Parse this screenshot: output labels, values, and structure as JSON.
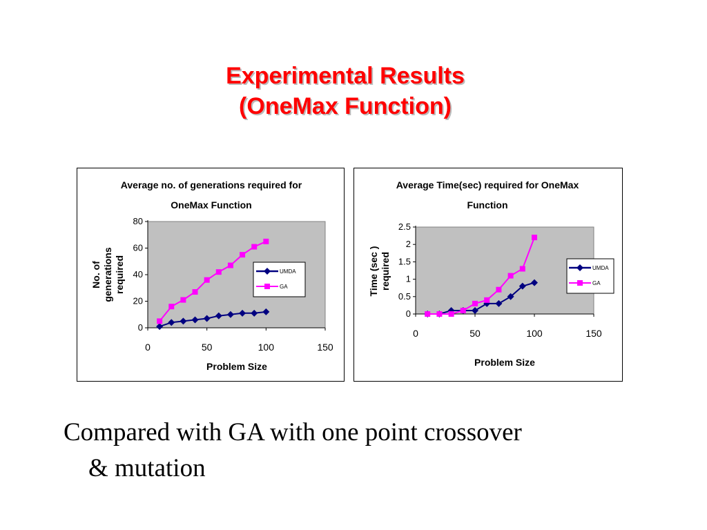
{
  "slide": {
    "title_line1": "Experimental Results",
    "title_line2": "(OneMax Function)",
    "caption_line1": "Compared with GA with one point crossover",
    "caption_line2": "& mutation",
    "title_color": "#ff0000"
  },
  "chart_data": [
    {
      "type": "line",
      "title_lines": [
        "Average no. of generations required for",
        "OneMax Function"
      ],
      "xlabel": "Problem Size",
      "ylabel_lines": [
        "No. of",
        "generations",
        "required"
      ],
      "xlim": [
        0,
        150
      ],
      "ylim": [
        0,
        80
      ],
      "xticks": [
        0,
        50,
        100,
        150
      ],
      "yticks": [
        0,
        20,
        40,
        60,
        80
      ],
      "grid": false,
      "plot_background": "#c0c0c0",
      "legend_position": "right",
      "series": [
        {
          "name": "UMDA",
          "color": "#000080",
          "marker": "diamond",
          "x": [
            10,
            20,
            30,
            40,
            50,
            60,
            70,
            80,
            90,
            100
          ],
          "values": [
            1,
            4,
            5,
            6,
            7,
            9,
            10,
            11,
            11,
            12
          ]
        },
        {
          "name": "GA",
          "color": "#ff00ff",
          "marker": "square",
          "x": [
            10,
            20,
            30,
            40,
            50,
            60,
            70,
            80,
            90,
            100
          ],
          "values": [
            5,
            16,
            21,
            27,
            36,
            42,
            47,
            55,
            61,
            65
          ]
        }
      ]
    },
    {
      "type": "line",
      "title_lines": [
        "Average Time(sec) required for OneMax",
        "Function"
      ],
      "xlabel": "Problem Size",
      "ylabel_lines": [
        "Time (sec )",
        "required"
      ],
      "xlim": [
        0,
        150
      ],
      "ylim": [
        0,
        2.5
      ],
      "xticks": [
        0,
        50,
        100,
        150
      ],
      "yticks": [
        0,
        0.5,
        1,
        1.5,
        2,
        2.5
      ],
      "grid": false,
      "plot_background": "#c0c0c0",
      "legend_position": "right",
      "series": [
        {
          "name": "UMDA",
          "color": "#000080",
          "marker": "diamond",
          "x": [
            10,
            20,
            30,
            40,
            50,
            60,
            70,
            80,
            90,
            100
          ],
          "values": [
            0,
            0,
            0.1,
            0.1,
            0.1,
            0.3,
            0.3,
            0.5,
            0.8,
            0.9
          ]
        },
        {
          "name": "GA",
          "color": "#ff00ff",
          "marker": "square",
          "x": [
            10,
            20,
            30,
            40,
            50,
            60,
            70,
            80,
            90,
            100
          ],
          "values": [
            0,
            0,
            0,
            0.1,
            0.3,
            0.4,
            0.7,
            1.1,
            1.3,
            2.2
          ]
        }
      ]
    }
  ]
}
